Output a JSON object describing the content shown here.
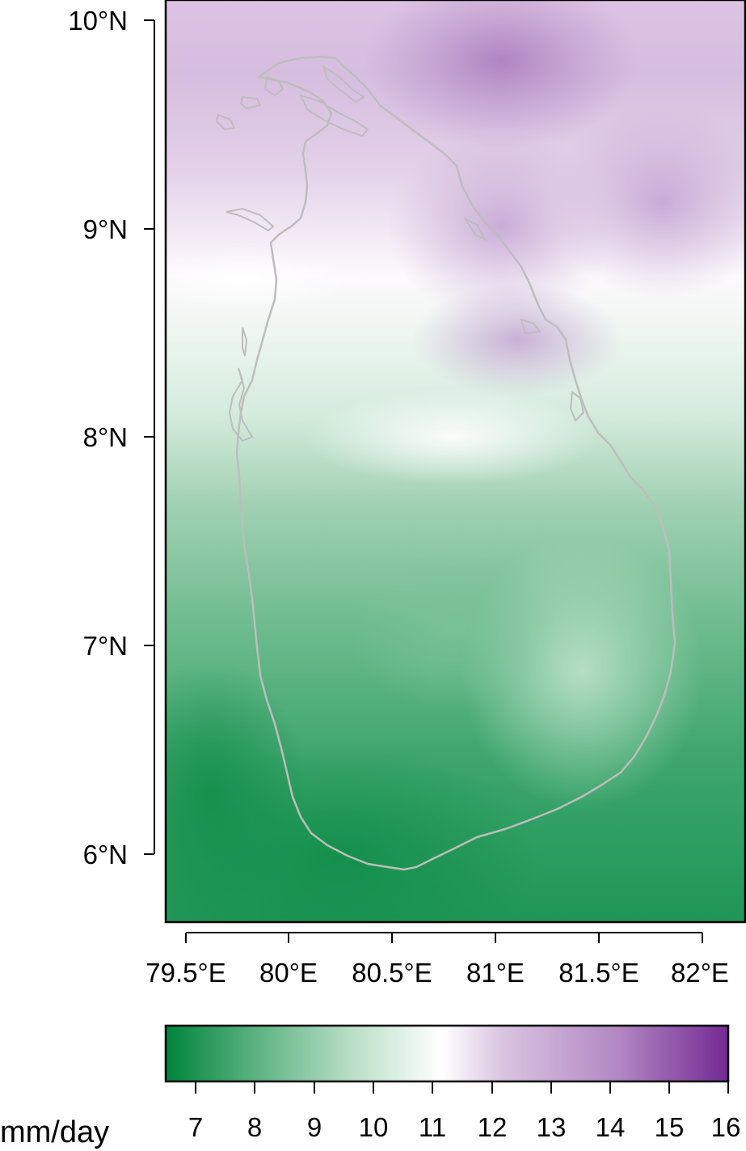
{
  "map": {
    "lat_labels": [
      "10°N",
      "9°N",
      "8°N",
      "7°N",
      "6°N"
    ],
    "lat_values": [
      10,
      9,
      8,
      7,
      6
    ],
    "lon_labels": [
      "79.5°E",
      "80°E",
      "80.5°E",
      "81°E",
      "81.5°E",
      "82°E"
    ],
    "lon_values": [
      79.5,
      80,
      80.5,
      81,
      81.5,
      82
    ],
    "lon_range": [
      79.4,
      82.12
    ],
    "lat_range": [
      5.66,
      10.08
    ],
    "outline_color": "#bdbdbd",
    "frame_color": "#000000"
  },
  "colorbar": {
    "unit_label": "mm/day",
    "tick_labels": [
      "7",
      "8",
      "9",
      "10",
      "11",
      "12",
      "13",
      "14",
      "15",
      "16"
    ],
    "tick_values": [
      7,
      8,
      9,
      10,
      11,
      12,
      13,
      14,
      15,
      16
    ],
    "value_range": [
      6.55,
      16
    ],
    "colors": [
      "#00843c",
      "#5cb281",
      "#b9dec6",
      "#ffffff",
      "#d9c3e0",
      "#b389c4",
      "#742a94"
    ]
  }
}
